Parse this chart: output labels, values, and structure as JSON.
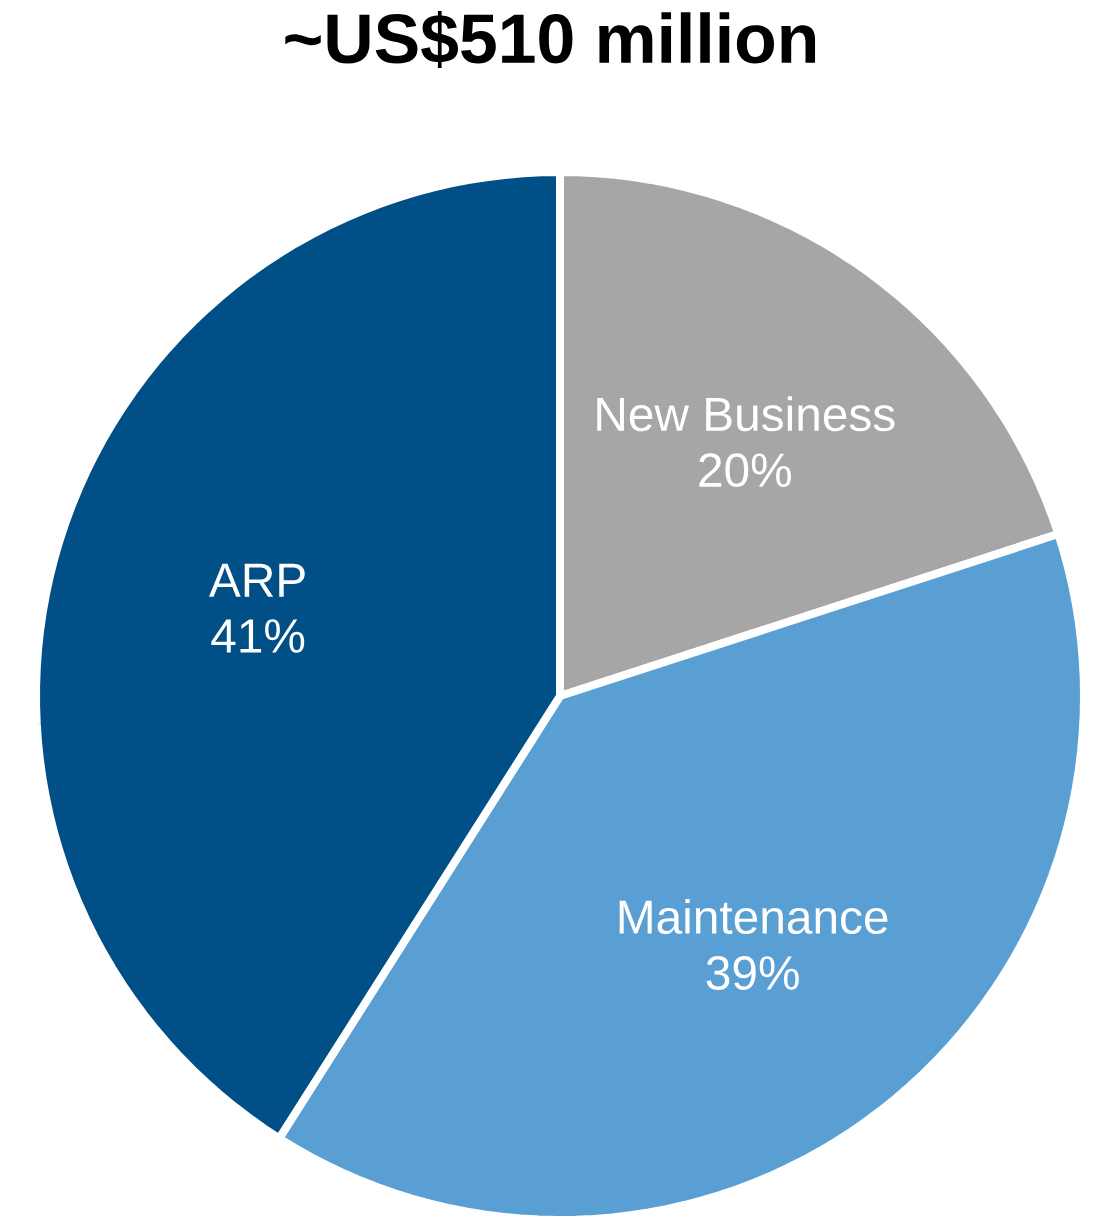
{
  "chart_data": {
    "type": "pie",
    "title": "~US$510 million",
    "categories": [
      "New Business",
      "Maintenance",
      "ARP"
    ],
    "values": [
      20,
      39,
      41
    ],
    "value_labels": [
      "20%",
      "39%",
      "41%"
    ],
    "colors": [
      "#a6a6a6",
      "#5a9fd4",
      "#004f86"
    ]
  }
}
